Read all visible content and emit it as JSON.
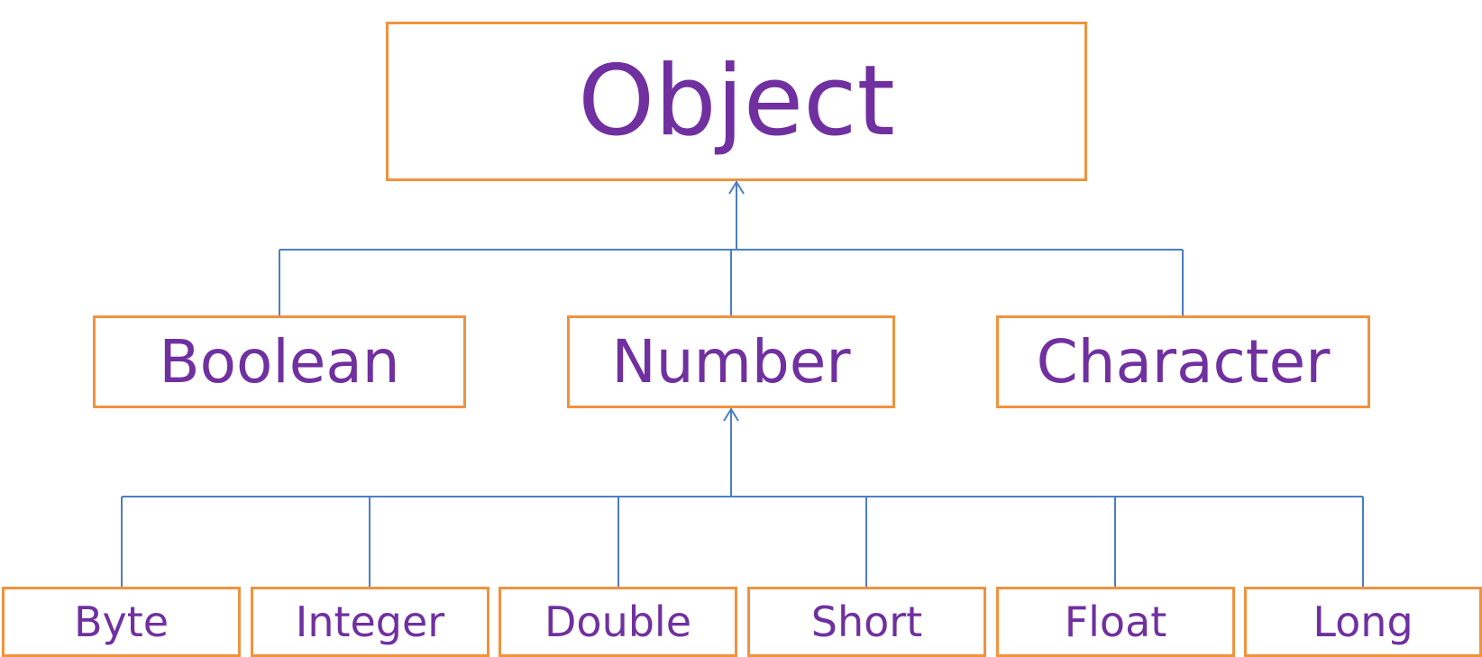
{
  "diagram": {
    "root": {
      "label": "Object"
    },
    "middle": [
      {
        "label": "Boolean"
      },
      {
        "label": "Number"
      },
      {
        "label": "Character"
      }
    ],
    "number_children": [
      {
        "label": "Byte"
      },
      {
        "label": "Integer"
      },
      {
        "label": "Double"
      },
      {
        "label": "Short"
      },
      {
        "label": "Float"
      },
      {
        "label": "Long"
      }
    ],
    "edges": [
      {
        "from": "Boolean",
        "to": "Object"
      },
      {
        "from": "Number",
        "to": "Object"
      },
      {
        "from": "Character",
        "to": "Object"
      },
      {
        "from": "Byte",
        "to": "Number"
      },
      {
        "from": "Integer",
        "to": "Number"
      },
      {
        "from": "Double",
        "to": "Number"
      },
      {
        "from": "Short",
        "to": "Number"
      },
      {
        "from": "Float",
        "to": "Number"
      },
      {
        "from": "Long",
        "to": "Number"
      }
    ],
    "colors": {
      "box_border": "#f0923e",
      "label_text": "#7030a0",
      "connector": "#4a7ec9"
    }
  }
}
